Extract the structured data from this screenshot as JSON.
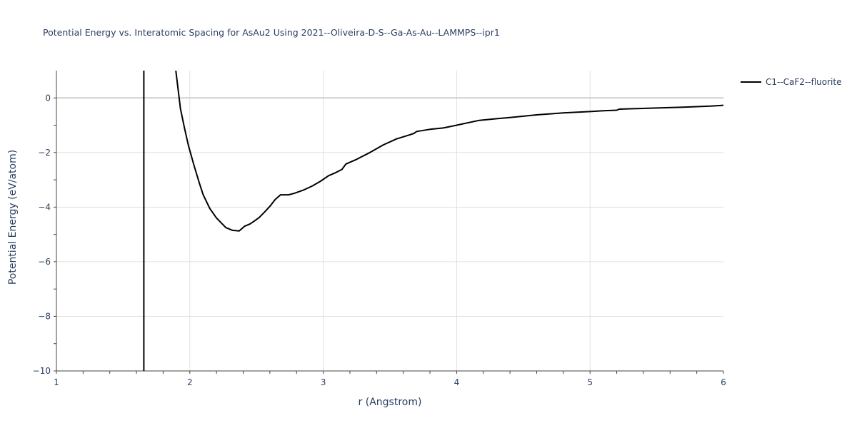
{
  "chart_data": {
    "type": "line",
    "title": "Potential Energy vs. Interatomic Spacing for AsAu2 Using 2021--Oliveira-D-S--Ga-As-Au--LAMMPS--ipr1",
    "xlabel": "r (Angstrom)",
    "ylabel": "Potential Energy (eV/atom)",
    "xlim": [
      1,
      6
    ],
    "ylim": [
      -10,
      1
    ],
    "xticks": [
      1,
      2,
      3,
      4,
      5,
      6
    ],
    "xtick_labels": [
      "1",
      "2",
      "3",
      "4",
      "5",
      "6"
    ],
    "yticks": [
      0,
      -2,
      -4,
      -6,
      -8,
      -10
    ],
    "ytick_labels": [
      "0",
      "−2",
      "−4",
      "−6",
      "−8",
      "−10"
    ],
    "grid": true,
    "legend_position": "top-right",
    "series": [
      {
        "name": "C1--CaF2--fluorite",
        "color": "#000000",
        "segments": [
          [
            [
              1.655,
              -10.0
            ],
            [
              1.655,
              1.0
            ]
          ],
          [
            [
              1.895,
              1.0
            ],
            [
              1.93,
              -0.4
            ],
            [
              1.96,
              -1.1
            ],
            [
              1.99,
              -1.75
            ],
            [
              2.03,
              -2.45
            ],
            [
              2.07,
              -3.1
            ],
            [
              2.1,
              -3.55
            ],
            [
              2.15,
              -4.05
            ],
            [
              2.2,
              -4.4
            ],
            [
              2.23,
              -4.55
            ],
            [
              2.27,
              -4.75
            ],
            [
              2.32,
              -4.85
            ],
            [
              2.37,
              -4.87
            ],
            [
              2.41,
              -4.7
            ],
            [
              2.45,
              -4.62
            ],
            [
              2.48,
              -4.52
            ],
            [
              2.52,
              -4.38
            ],
            [
              2.56,
              -4.18
            ],
            [
              2.6,
              -3.97
            ],
            [
              2.64,
              -3.72
            ],
            [
              2.68,
              -3.55
            ],
            [
              2.74,
              -3.55
            ],
            [
              2.78,
              -3.5
            ],
            [
              2.85,
              -3.38
            ],
            [
              2.92,
              -3.22
            ],
            [
              2.98,
              -3.05
            ],
            [
              3.04,
              -2.85
            ],
            [
              3.1,
              -2.72
            ],
            [
              3.14,
              -2.62
            ],
            [
              3.17,
              -2.42
            ],
            [
              3.25,
              -2.25
            ],
            [
              3.35,
              -2.0
            ],
            [
              3.45,
              -1.72
            ],
            [
              3.55,
              -1.5
            ],
            [
              3.65,
              -1.35
            ],
            [
              3.68,
              -1.3
            ],
            [
              3.7,
              -1.23
            ],
            [
              3.8,
              -1.15
            ],
            [
              3.9,
              -1.1
            ],
            [
              4.0,
              -1.0
            ],
            [
              4.17,
              -0.82
            ],
            [
              4.3,
              -0.76
            ],
            [
              4.4,
              -0.72
            ],
            [
              4.6,
              -0.62
            ],
            [
              4.8,
              -0.55
            ],
            [
              5.0,
              -0.5
            ],
            [
              5.1,
              -0.47
            ],
            [
              5.2,
              -0.45
            ],
            [
              5.22,
              -0.41
            ],
            [
              5.5,
              -0.37
            ],
            [
              5.7,
              -0.34
            ],
            [
              5.9,
              -0.3
            ],
            [
              6.0,
              -0.27
            ]
          ]
        ]
      }
    ]
  }
}
